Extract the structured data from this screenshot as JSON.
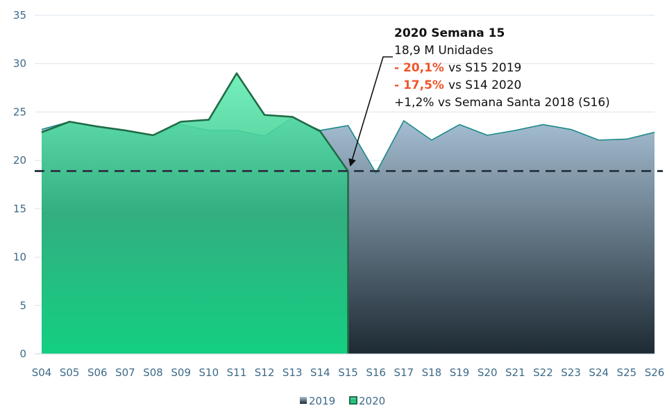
{
  "chart_data": {
    "type": "area",
    "categories": [
      "S04",
      "S05",
      "S06",
      "S07",
      "S08",
      "S09",
      "S10",
      "S11",
      "S12",
      "S13",
      "S14",
      "S15",
      "S16",
      "S17",
      "S18",
      "S19",
      "S20",
      "S21",
      "S22",
      "S23",
      "S24",
      "S25",
      "S26"
    ],
    "series": [
      {
        "name": "2019",
        "color": "#1a8a8a",
        "values": [
          23.2,
          24.0,
          23.5,
          23.1,
          22.6,
          23.7,
          23.1,
          23.1,
          22.5,
          24.4,
          23.1,
          23.6,
          18.7,
          24.1,
          22.1,
          23.7,
          22.6,
          23.1,
          23.7,
          23.2,
          22.1,
          22.2,
          22.9
        ]
      },
      {
        "name": "2020",
        "color": "#1f6b45",
        "values": [
          22.9,
          24.0,
          23.5,
          23.1,
          22.6,
          24.0,
          24.2,
          29.0,
          24.7,
          24.5,
          23.0,
          18.9,
          null,
          null,
          null,
          null,
          null,
          null,
          null,
          null,
          null,
          null,
          null
        ]
      }
    ],
    "ylim": [
      0,
      35
    ],
    "yticks": [
      0,
      5,
      10,
      15,
      20,
      25,
      30,
      35
    ],
    "grid": true,
    "reference_line": 18.9,
    "annotation": {
      "title": "2020 Semana 15",
      "text": "18,9 M Unidades",
      "comparisons": [
        {
          "change": "- 20,1%",
          "text": "vs S15 2019"
        },
        {
          "change": "- 17,5%",
          "text": "vs S14 2020"
        }
      ],
      "note": "+1,2% vs Semana Santa 2018 (S16)"
    }
  }
}
